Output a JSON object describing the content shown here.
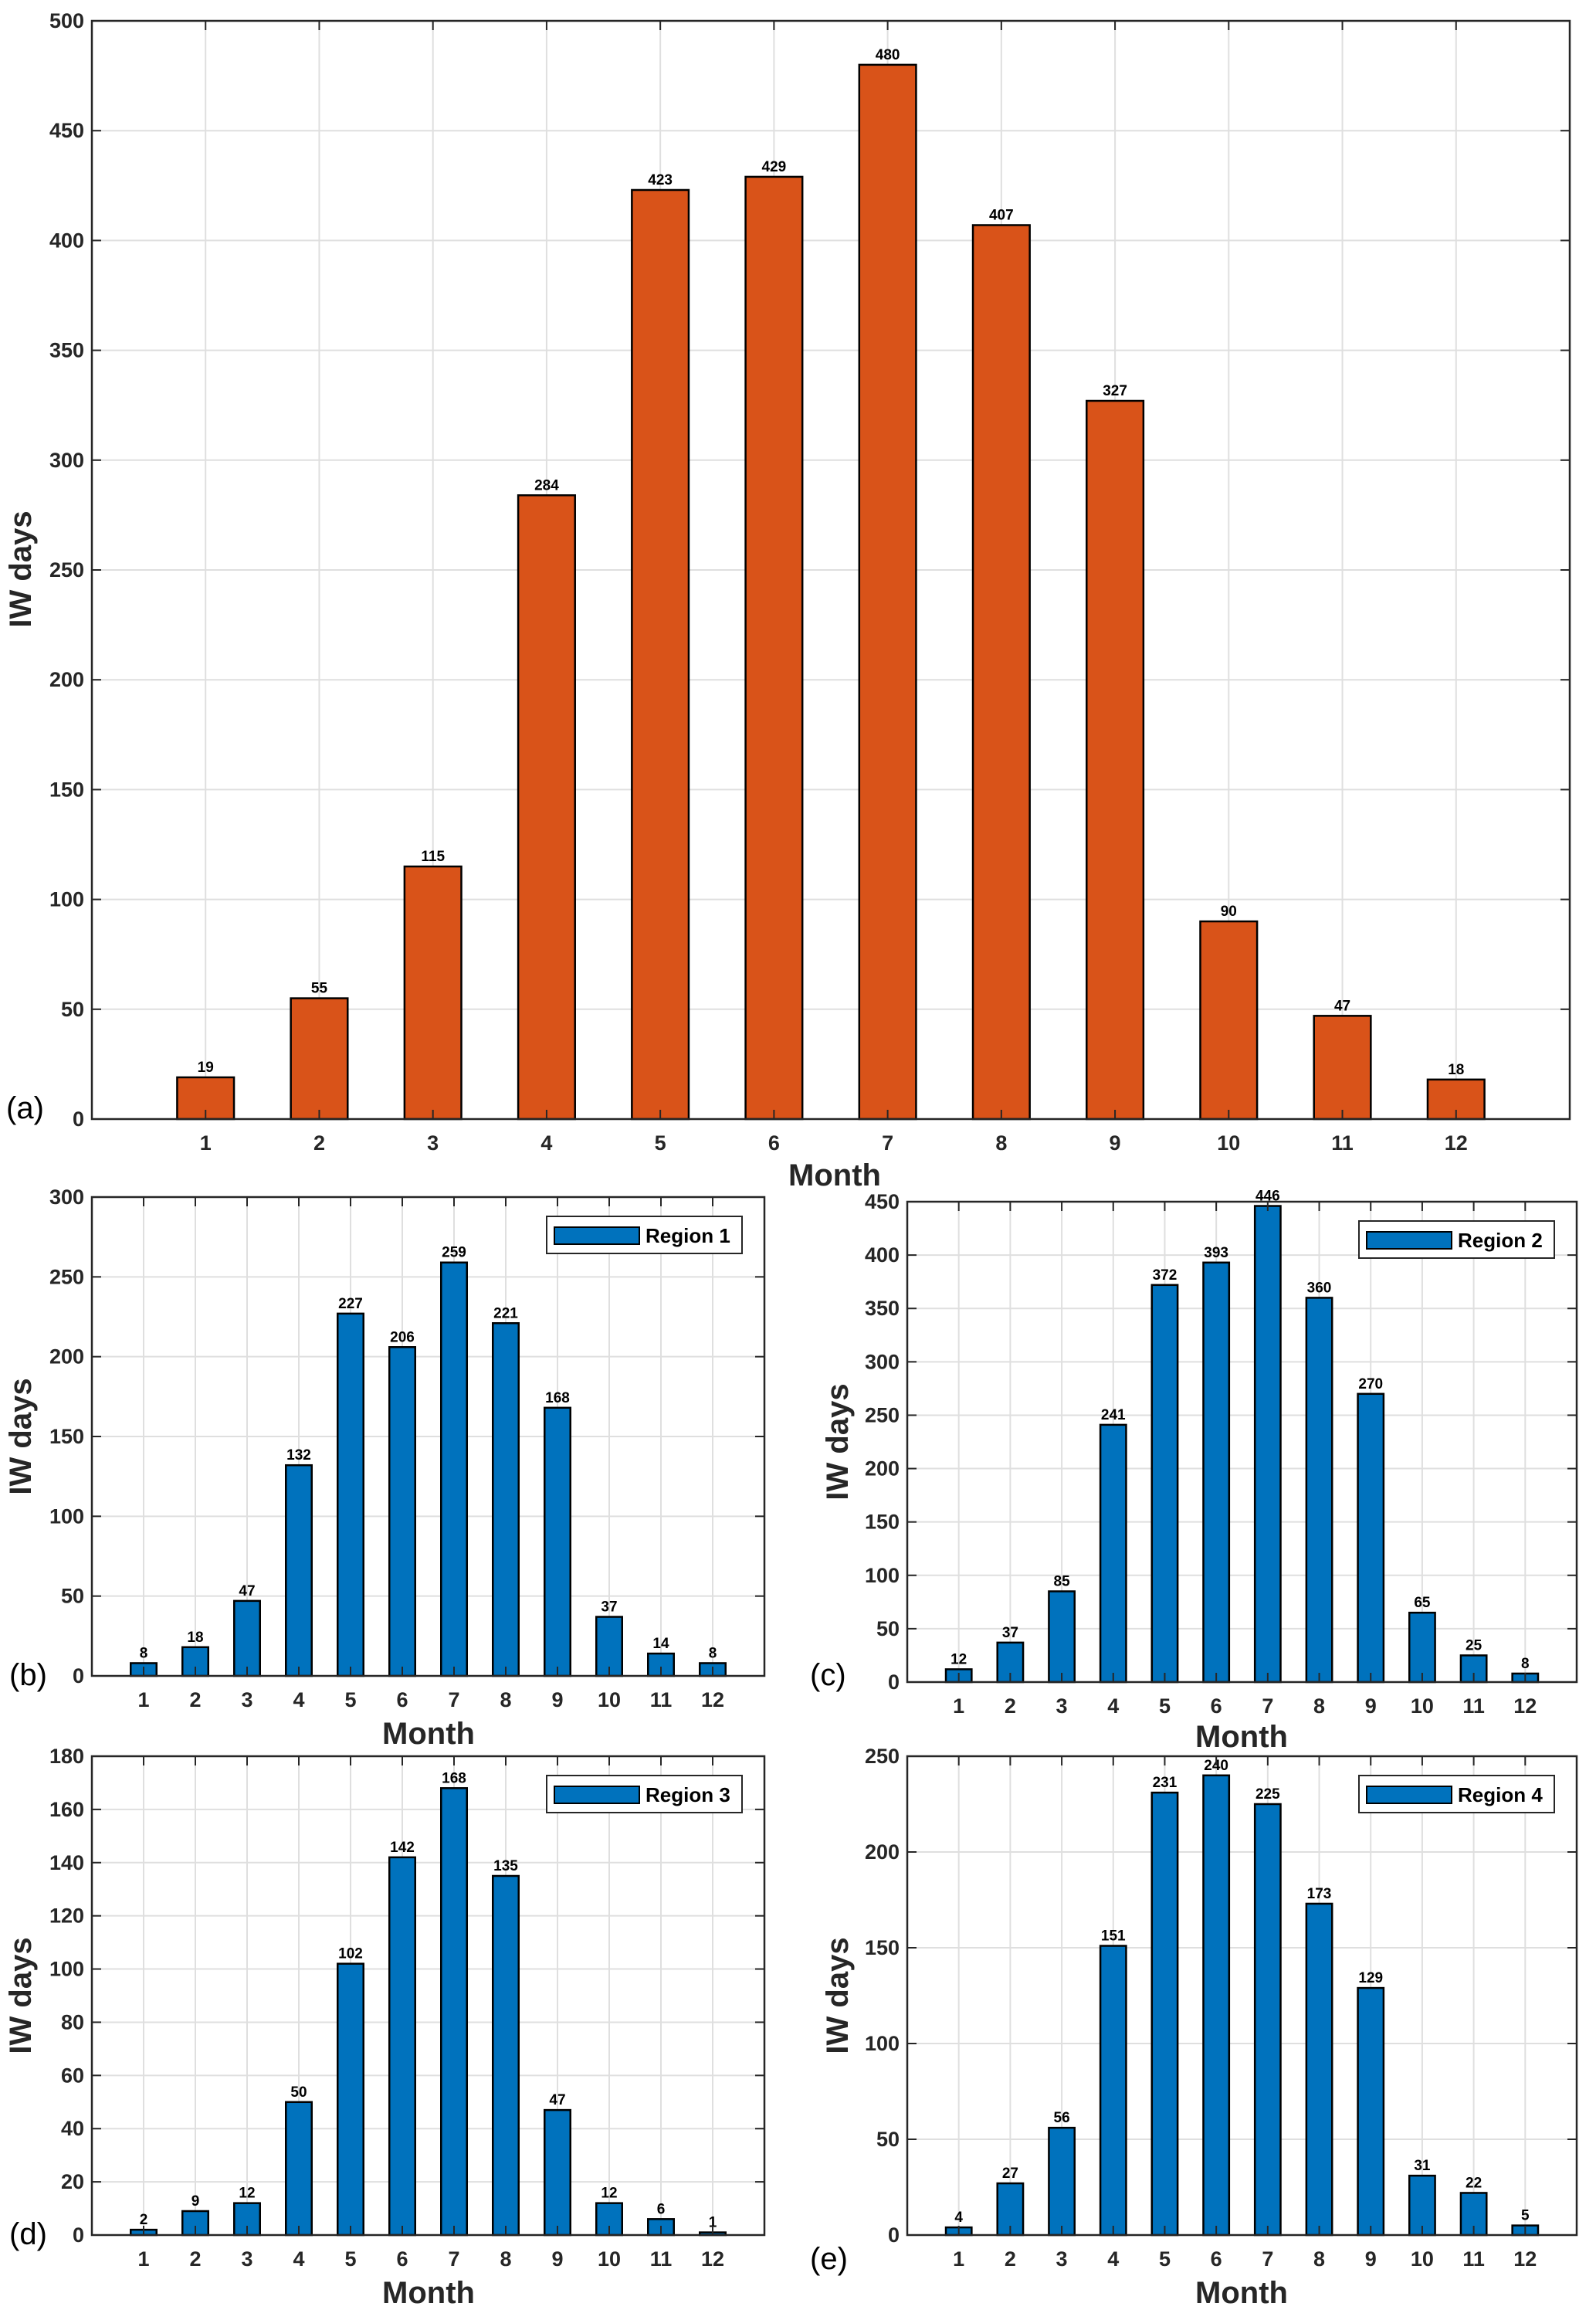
{
  "colors": {
    "orange": "#D95319",
    "blue": "#0072BD",
    "grid": "#DFDFDF",
    "axis": "#262626"
  },
  "chart_data": [
    {
      "id": "a",
      "type": "bar",
      "panel_label": "(a)",
      "xlabel": "Month",
      "ylabel": "IW days",
      "categories": [
        1,
        2,
        3,
        4,
        5,
        6,
        7,
        8,
        9,
        10,
        11,
        12
      ],
      "values": [
        19,
        55,
        115,
        284,
        423,
        429,
        480,
        407,
        327,
        90,
        47,
        18
      ],
      "ylim": [
        0,
        500
      ],
      "ystep": 50,
      "xlim": [
        0,
        13
      ],
      "grid": true,
      "color": "#D95319",
      "legend": null
    },
    {
      "id": "b",
      "type": "bar",
      "panel_label": "(b)",
      "xlabel": "Month",
      "ylabel": "IW days",
      "categories": [
        1,
        2,
        3,
        4,
        5,
        6,
        7,
        8,
        9,
        10,
        11,
        12
      ],
      "values": [
        8,
        18,
        47,
        132,
        227,
        206,
        259,
        221,
        168,
        37,
        14,
        8
      ],
      "ylim": [
        0,
        300
      ],
      "ystep": 50,
      "xlim": [
        0,
        13
      ],
      "grid": true,
      "color": "#0072BD",
      "legend": "Region 1",
      "legend_position": "top-right"
    },
    {
      "id": "c",
      "type": "bar",
      "panel_label": "(c)",
      "xlabel": "Month",
      "ylabel": "IW days",
      "categories": [
        1,
        2,
        3,
        4,
        5,
        6,
        7,
        8,
        9,
        10,
        11,
        12
      ],
      "values": [
        12,
        37,
        85,
        241,
        372,
        393,
        446,
        360,
        270,
        65,
        25,
        8
      ],
      "ylim": [
        0,
        450
      ],
      "ystep": 50,
      "xlim": [
        0,
        13
      ],
      "grid": true,
      "color": "#0072BD",
      "legend": "Region 2",
      "legend_position": "top-right"
    },
    {
      "id": "d",
      "type": "bar",
      "panel_label": "(d)",
      "xlabel": "Month",
      "ylabel": "IW days",
      "categories": [
        1,
        2,
        3,
        4,
        5,
        6,
        7,
        8,
        9,
        10,
        11,
        12
      ],
      "values": [
        2,
        9,
        12,
        50,
        102,
        142,
        168,
        135,
        47,
        12,
        6,
        1
      ],
      "ylim": [
        0,
        180
      ],
      "ystep": 20,
      "xlim": [
        0,
        13
      ],
      "grid": true,
      "color": "#0072BD",
      "legend": "Region 3",
      "legend_position": "top-right"
    },
    {
      "id": "e",
      "type": "bar",
      "panel_label": "(e)",
      "xlabel": "Month",
      "ylabel": "IW days",
      "categories": [
        1,
        2,
        3,
        4,
        5,
        6,
        7,
        8,
        9,
        10,
        11,
        12
      ],
      "values": [
        4,
        27,
        56,
        151,
        231,
        240,
        225,
        173,
        129,
        31,
        22,
        5
      ],
      "ylim": [
        0,
        250
      ],
      "ystep": 50,
      "xlim": [
        0,
        13
      ],
      "grid": true,
      "color": "#0072BD",
      "legend": "Region 4",
      "legend_position": "top-right"
    }
  ]
}
